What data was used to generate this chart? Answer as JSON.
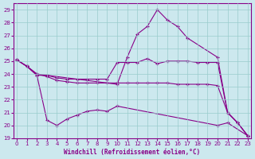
{
  "xlabel": "Windchill (Refroidissement éolien,°C)",
  "bg_color": "#cce8ee",
  "line_color": "#880088",
  "ylim": [
    19,
    29.5
  ],
  "xlim": [
    -0.3,
    23.3
  ],
  "yticks": [
    19,
    20,
    21,
    22,
    23,
    24,
    25,
    26,
    27,
    28,
    29
  ],
  "xticks": [
    0,
    1,
    2,
    3,
    4,
    5,
    6,
    7,
    8,
    9,
    10,
    11,
    12,
    13,
    14,
    15,
    16,
    17,
    18,
    19,
    20,
    21,
    22,
    23
  ],
  "series": [
    {
      "x": [
        0,
        1,
        2,
        3,
        10,
        11,
        12,
        13,
        14,
        15,
        16,
        17,
        20,
        21,
        22,
        23
      ],
      "y": [
        25.1,
        24.6,
        24.0,
        23.9,
        23.2,
        25.3,
        27.1,
        27.7,
        29.0,
        28.2,
        27.7,
        26.8,
        25.3,
        21.0,
        20.2,
        19.2
      ]
    },
    {
      "x": [
        0,
        1,
        2,
        3,
        4,
        5,
        6,
        7,
        8,
        9,
        10,
        11,
        12,
        13,
        14,
        15,
        16,
        17,
        18,
        19,
        20,
        21,
        22,
        23
      ],
      "y": [
        25.1,
        24.6,
        23.9,
        23.9,
        23.7,
        23.6,
        23.6,
        23.6,
        23.6,
        23.6,
        24.9,
        24.9,
        24.9,
        25.2,
        24.8,
        25.0,
        25.0,
        25.0,
        24.9,
        24.9,
        24.9,
        21.0,
        20.2,
        19.2
      ]
    },
    {
      "x": [
        0,
        1,
        2,
        3,
        4,
        5,
        6,
        7,
        8,
        9,
        10,
        11,
        12,
        13,
        14,
        15,
        16,
        17,
        18,
        19,
        20,
        21,
        22,
        23
      ],
      "y": [
        25.1,
        24.6,
        24.0,
        23.8,
        23.5,
        23.4,
        23.3,
        23.3,
        23.3,
        23.3,
        23.3,
        23.3,
        23.3,
        23.3,
        23.3,
        23.3,
        23.2,
        23.2,
        23.2,
        23.2,
        23.1,
        21.0,
        20.2,
        19.2
      ]
    },
    {
      "x": [
        0,
        1,
        2,
        3,
        4,
        5,
        6,
        7,
        8,
        9,
        10,
        20,
        21,
        23
      ],
      "y": [
        25.1,
        24.6,
        23.9,
        20.4,
        20.0,
        20.5,
        20.8,
        21.1,
        21.2,
        21.1,
        21.5,
        20.0,
        20.2,
        19.2
      ]
    }
  ]
}
